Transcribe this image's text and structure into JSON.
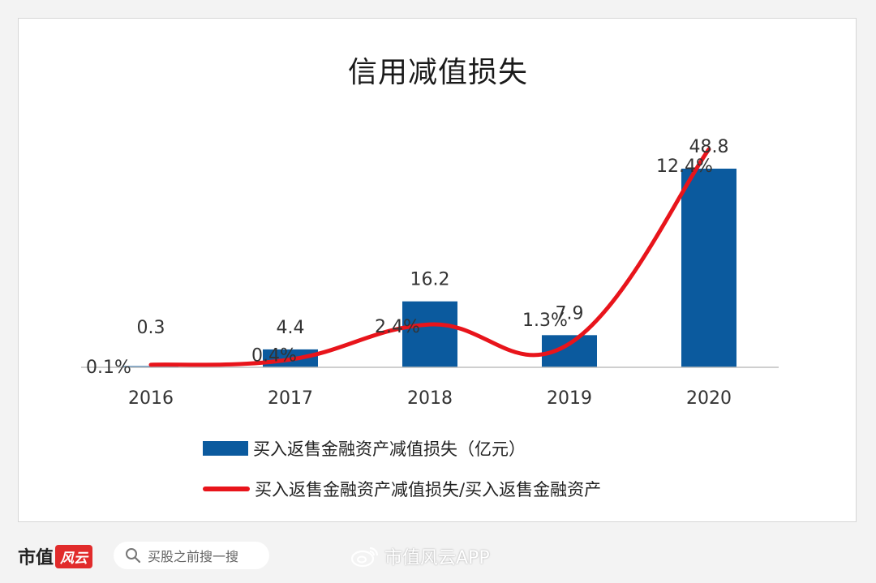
{
  "colors": {
    "bar": "#0b5a9e",
    "line": "#e8141b",
    "axis": "#bfbfbf",
    "label": "#333333"
  },
  "chart_data": {
    "type": "bar+line",
    "title": "信用减值损失",
    "categories": [
      "2016",
      "2017",
      "2018",
      "2019",
      "2020"
    ],
    "series": [
      {
        "name": "买入返售金融资产减值损失（亿元）",
        "type": "bar",
        "values": [
          0.3,
          4.4,
          16.2,
          7.9,
          48.8
        ],
        "labels": [
          "0.3",
          "4.4",
          "16.2",
          "7.9",
          "48.8"
        ]
      },
      {
        "name": "买入返售金融资产减值损失/买入返售金融资产",
        "type": "line",
        "values": [
          0.1,
          0.4,
          2.4,
          1.3,
          12.4
        ],
        "labels": [
          "0.1%",
          "0.4%",
          "2.4%",
          "1.3%",
          "12.4%"
        ]
      }
    ],
    "legend_position": "bottom",
    "grid": false
  },
  "footer": {
    "brand": "市值",
    "brand_badge": "风云",
    "search_placeholder": "买股之前搜一搜",
    "weibo_account": "市值风云APP"
  }
}
